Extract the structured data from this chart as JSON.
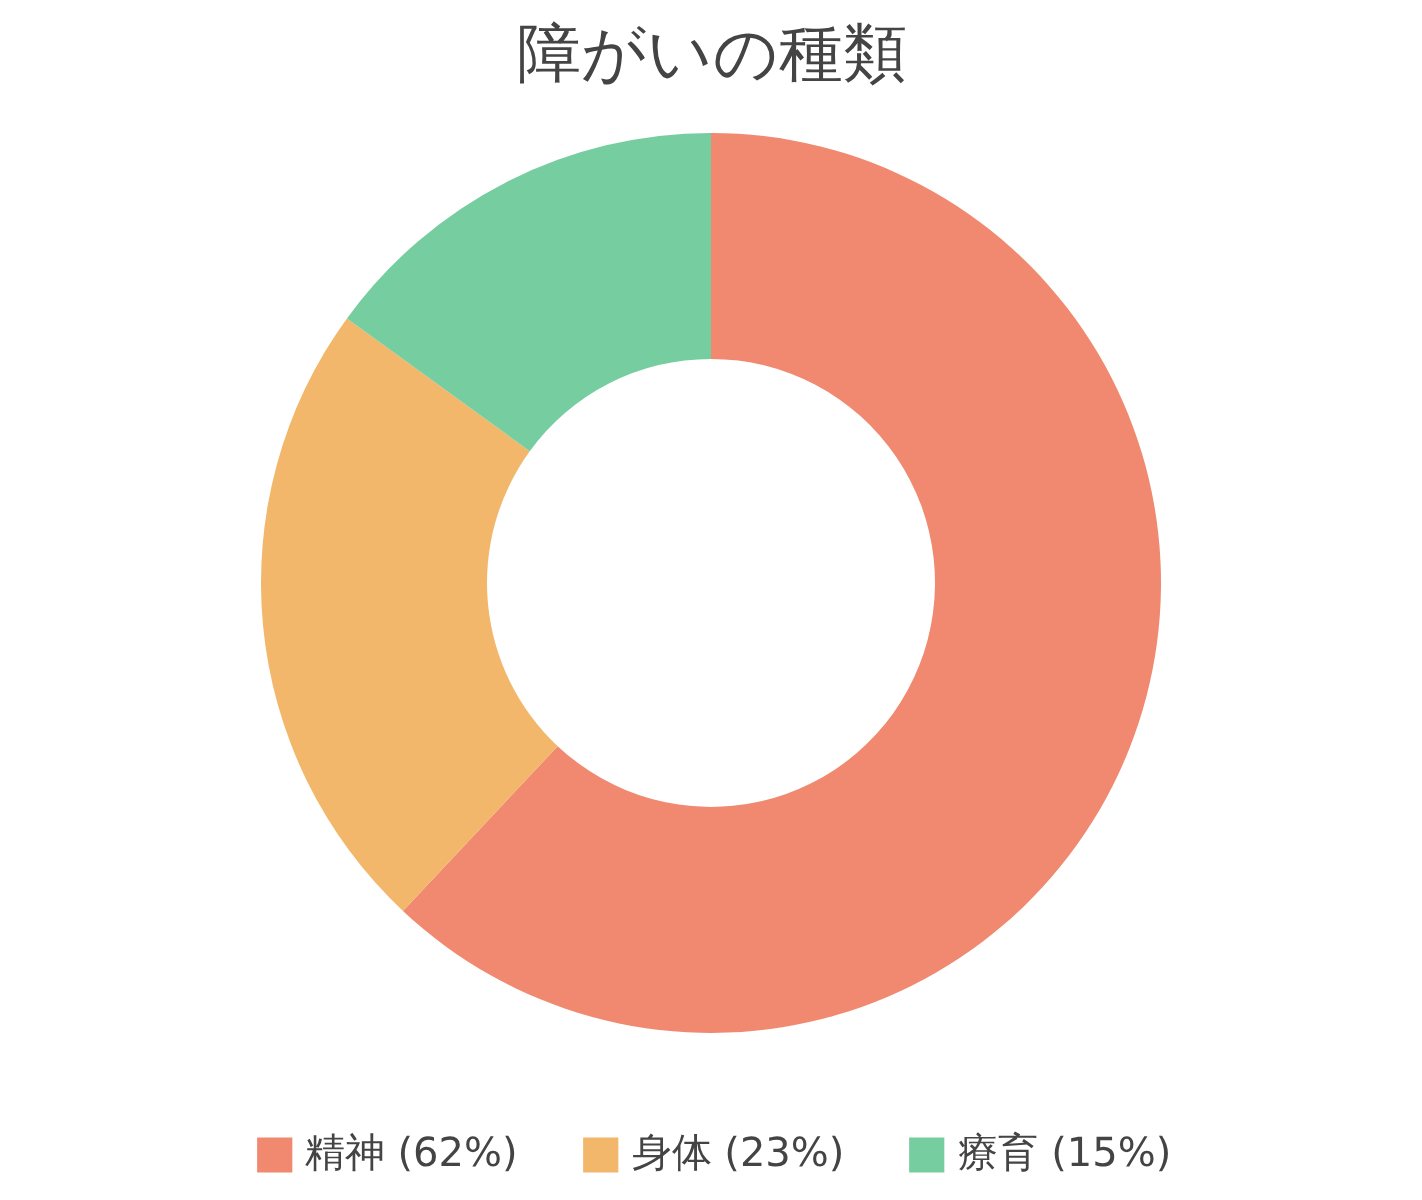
{
  "chart_data": {
    "type": "donut",
    "title": "障がいの種類",
    "categories": [
      "精神 (62%)",
      "身体 (23%)",
      "療育 (15%)"
    ],
    "values": [
      62,
      23,
      15
    ],
    "colors": [
      "#f0896f",
      "#f2b76a",
      "#76cda0"
    ],
    "legend": "bottom"
  }
}
